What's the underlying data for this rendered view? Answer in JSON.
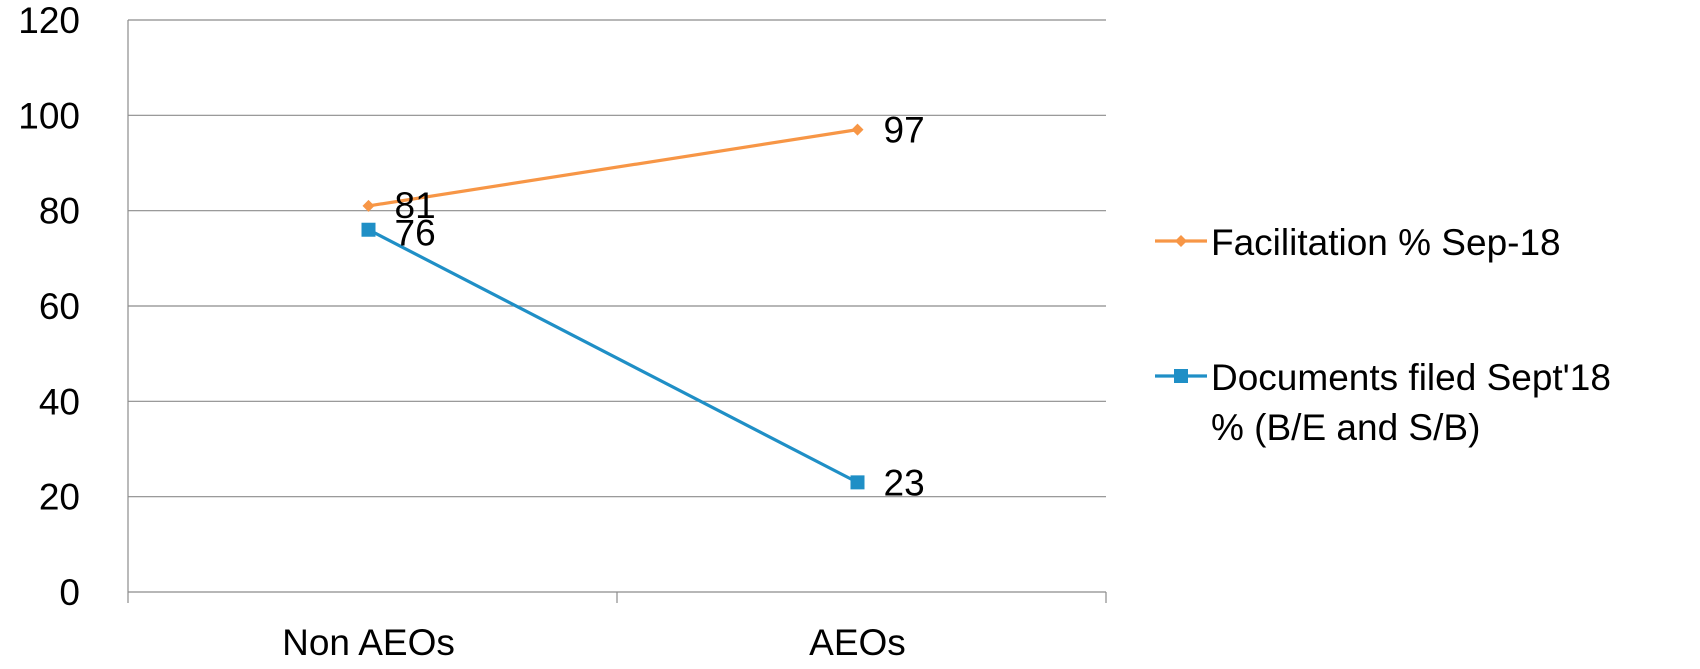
{
  "chart_data": {
    "type": "line",
    "categories": [
      "Non AEOs",
      "AEOs"
    ],
    "ylim": [
      0,
      120
    ],
    "yticks": [
      "0",
      "20",
      "40",
      "60",
      "80",
      "100",
      "120"
    ],
    "grid": true,
    "legend_position": "right",
    "series": [
      {
        "name": "Facilitation % Sep-18",
        "legend_lines": [
          "Facilitation % Sep-18"
        ],
        "values": [
          81,
          97
        ],
        "labels": [
          "81",
          "97"
        ],
        "color": "#f79646",
        "marker": "diamond-icon"
      },
      {
        "name": "Documents filed Sept'18 % (B/E and S/B)",
        "legend_lines": [
          "Documents filed Sept'18",
          "% (B/E and S/B)"
        ],
        "values": [
          76,
          23
        ],
        "labels": [
          "76",
          "23"
        ],
        "color": "#1f8fc6",
        "marker": "square-icon"
      }
    ]
  }
}
